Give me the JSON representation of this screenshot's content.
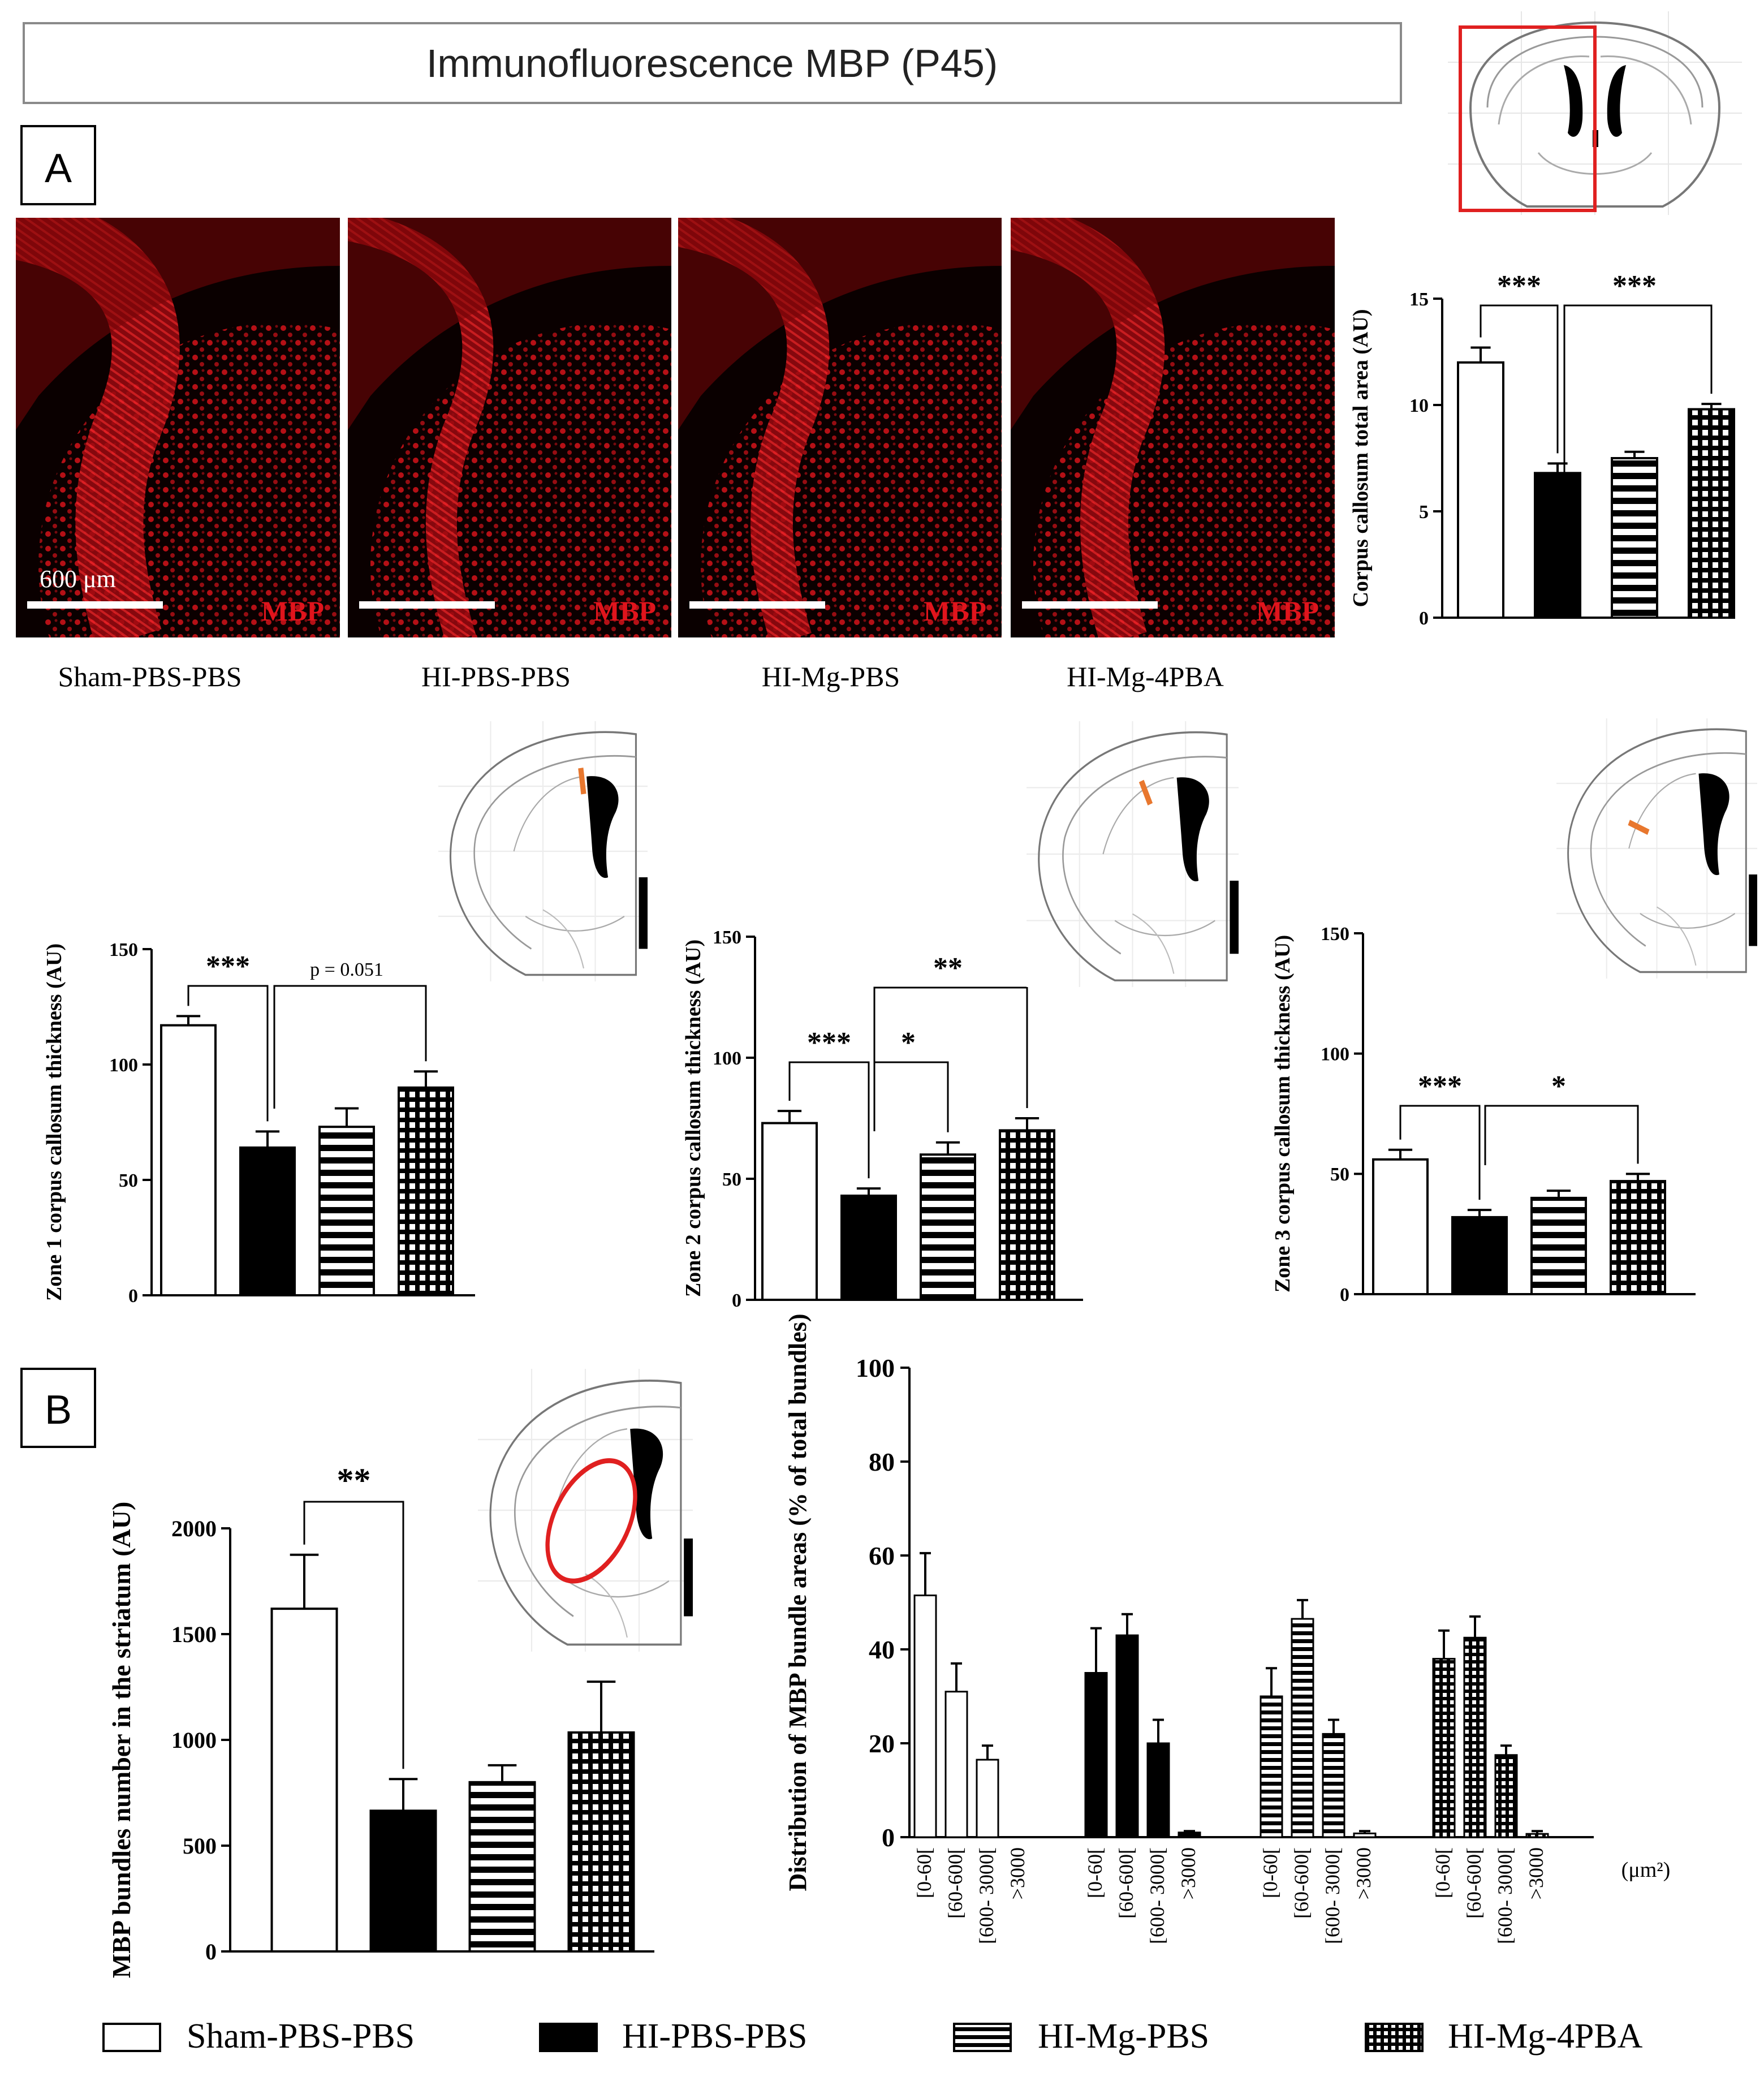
{
  "figure_title": "Immunofluorescence MBP (P45)",
  "panel_labels": {
    "a": "A",
    "b": "B"
  },
  "micrographs": {
    "marker_label": "MBP",
    "scale_label": "600 μm",
    "captions": [
      "Sham-PBS-PBS",
      "HI-PBS-PBS",
      "HI-Mg-PBS",
      "HI-Mg-4PBA"
    ],
    "colors": {
      "tissue": "#e0141c",
      "background": "#0a0000",
      "scalebar": "#ffffff"
    }
  },
  "legend": {
    "items": [
      {
        "label": "Sham-PBS-PBS",
        "pattern": "open"
      },
      {
        "label": "HI-PBS-PBS",
        "pattern": "solid"
      },
      {
        "label": "HI-Mg-PBS",
        "pattern": "horizontal"
      },
      {
        "label": "HI-Mg-4PBA",
        "pattern": "grid"
      }
    ]
  },
  "colors": {
    "accent": "#e02020",
    "zone_marker": "#e8772e",
    "bar_fill": "#000000",
    "outline": "#888888"
  },
  "chart_data": [
    {
      "id": "cc_area",
      "type": "bar",
      "categories": [
        "Sham-PBS-PBS",
        "HI-PBS-PBS",
        "HI-Mg-PBS",
        "HI-Mg-4PBA"
      ],
      "values": [
        12.0,
        6.8,
        7.5,
        9.8
      ],
      "errors": [
        0.7,
        0.45,
        0.3,
        0.25
      ],
      "ylabel": "Corpus callosum total area (AU)",
      "ylim": [
        0,
        15
      ],
      "yticks": [
        0,
        5,
        10,
        15
      ],
      "significance": [
        {
          "label": "***",
          "from": 0,
          "to": 1
        },
        {
          "label": "***",
          "from": 1,
          "to": 3
        }
      ]
    },
    {
      "id": "zone1",
      "type": "bar",
      "categories": [
        "Sham-PBS-PBS",
        "HI-PBS-PBS",
        "HI-Mg-PBS",
        "HI-Mg-4PBA"
      ],
      "values": [
        117,
        64,
        73,
        90
      ],
      "errors": [
        4,
        7,
        8,
        7
      ],
      "ylabel": "Zone 1 corpus callosum thickness (AU)",
      "ylim": [
        0,
        150
      ],
      "yticks": [
        0,
        50,
        100,
        150
      ],
      "significance": [
        {
          "label": "***",
          "from": 0,
          "to": 1
        },
        {
          "label": "p = 0.051",
          "from": 1,
          "to": 3
        }
      ]
    },
    {
      "id": "zone2",
      "type": "bar",
      "categories": [
        "Sham-PBS-PBS",
        "HI-PBS-PBS",
        "HI-Mg-PBS",
        "HI-Mg-4PBA"
      ],
      "values": [
        73,
        43,
        60,
        70
      ],
      "errors": [
        5,
        3,
        5,
        5
      ],
      "ylabel": "Zone 2 corpus callosum thickness (AU)",
      "ylim": [
        0,
        150
      ],
      "yticks": [
        0,
        50,
        100,
        150
      ],
      "significance": [
        {
          "label": "***",
          "from": 0,
          "to": 1
        },
        {
          "label": "*",
          "from": 1,
          "to": 2
        },
        {
          "label": "**",
          "from": 1,
          "to": 3
        }
      ]
    },
    {
      "id": "zone3",
      "type": "bar",
      "categories": [
        "Sham-PBS-PBS",
        "HI-PBS-PBS",
        "HI-Mg-PBS",
        "HI-Mg-4PBA"
      ],
      "values": [
        56,
        32,
        40,
        47
      ],
      "errors": [
        4,
        3,
        3,
        3
      ],
      "ylabel": "Zone 3 corpus callosum thickness (AU)",
      "ylim": [
        0,
        150
      ],
      "yticks": [
        0,
        50,
        100,
        150
      ],
      "significance": [
        {
          "label": "***",
          "from": 0,
          "to": 1
        },
        {
          "label": "*",
          "from": 1,
          "to": 3
        }
      ]
    },
    {
      "id": "bundles",
      "type": "bar",
      "categories": [
        "Sham-PBS-PBS",
        "HI-PBS-PBS",
        "HI-Mg-PBS",
        "HI-Mg-4PBA"
      ],
      "values": [
        1620,
        665,
        800,
        1035
      ],
      "errors": [
        255,
        150,
        80,
        240
      ],
      "ylabel": "MBP bundles number in the striatum (AU)",
      "ylim": [
        0,
        2000
      ],
      "yticks": [
        0,
        500,
        1000,
        1500,
        2000
      ],
      "significance": [
        {
          "label": "**",
          "from": 0,
          "to": 1
        }
      ]
    },
    {
      "id": "distribution",
      "type": "bar",
      "ylabel": "Distribution of MBP bundle areas (% of total bundles)",
      "ylim": [
        0,
        100
      ],
      "yticks": [
        0,
        20,
        40,
        60,
        80,
        100
      ],
      "unit_label": "(μm²)",
      "bins": [
        "[0-60[",
        "[60-600[",
        "[600- 3000[",
        ">3000"
      ],
      "groups": [
        {
          "name": "Sham-PBS-PBS",
          "values": [
            51.5,
            31,
            16.5,
            0
          ],
          "errors": [
            9,
            6,
            3,
            0
          ]
        },
        {
          "name": "HI-PBS-PBS",
          "values": [
            35,
            43,
            20,
            1
          ],
          "errors": [
            9.5,
            4.5,
            5,
            0.3
          ]
        },
        {
          "name": "HI-Mg-PBS",
          "values": [
            30,
            46.5,
            22,
            0.8
          ],
          "errors": [
            6,
            4,
            3,
            0.5
          ]
        },
        {
          "name": "HI-Mg-4PBA",
          "values": [
            38,
            42.5,
            17.5,
            0.7
          ],
          "errors": [
            6,
            4.5,
            2,
            0.6
          ]
        }
      ]
    }
  ]
}
